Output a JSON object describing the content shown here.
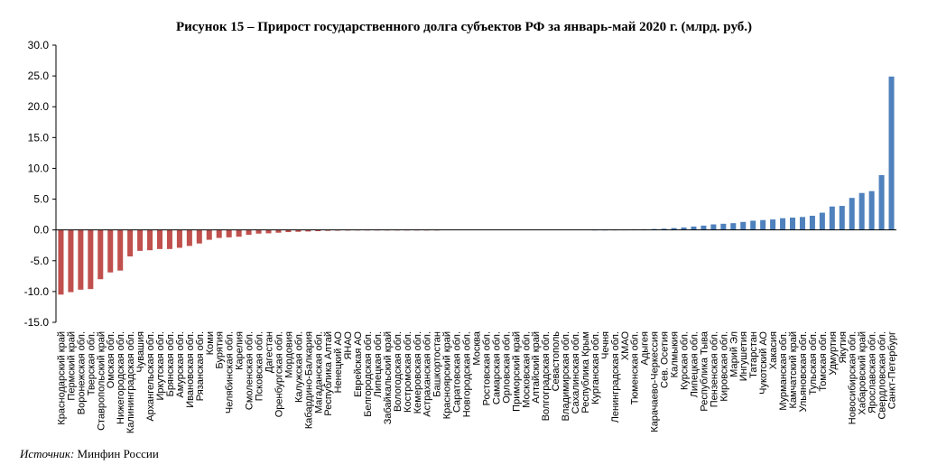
{
  "figure": {
    "title": "Рисунок 15 – Прирост государственного долга субъектов РФ за январь-май 2020 г. (млрд. руб.)",
    "source_label": "Источник:",
    "source_text": "Минфин России"
  },
  "chart_data": {
    "type": "bar",
    "title": "Рисунок 15 – Прирост государственного долга субъектов РФ за январь-май 2020 г. (млрд. руб.)",
    "xlabel": "",
    "ylabel": "",
    "ylim": [
      -15,
      30
    ],
    "yticks": [
      "30.0",
      "25.0",
      "20.0",
      "15.0",
      "10.0",
      "5.0",
      "0.0",
      "-5.0",
      "-10.0",
      "-15.0"
    ],
    "grid": false,
    "colors": {
      "negative": "#c0504d",
      "positive": "#4f81bd"
    },
    "categories": [
      "Краснодарский край",
      "Пермский край",
      "Воронежская обл.",
      "Тверская обл.",
      "Ставропольский край",
      "Омская обл.",
      "Нижегородская обл.",
      "Калининградская обл.",
      "Чувашия",
      "Архангельская обл.",
      "Иркутская обл.",
      "Брянская обл.",
      "Амурская обл.",
      "Ивановская обл.",
      "Рязанская обл.",
      "Коми",
      "Бурятия",
      "Челябинская обл.",
      "Карелия",
      "Смоленская обл.",
      "Псковская обл.",
      "Дагестан",
      "Оренбургская обл.",
      "Мордовия",
      "Калужская обл.",
      "Кабардино-Балкария",
      "Магаданская обл.",
      "Республика Алтай",
      "Ненецкий АО",
      "ЯНАО",
      "Еврейская АО",
      "Белгородская обл.",
      "Липецкая обл.",
      "Забайкальский край",
      "Вологодская обл.",
      "Костромская обл.",
      "Кемеровская обл.",
      "Астраханская обл.",
      "Башкортостан",
      "Красноярский край",
      "Саратовская обл.",
      "Новгородская обл.",
      "Москва",
      "Ростовская обл.",
      "Самарская обл.",
      "Орловская обл.",
      "Приморский край",
      "Московская обл.",
      "Алтайский край",
      "Волгоградская обл.",
      "Севастополь",
      "Владимирская обл.",
      "Сахалинская обл.",
      "Республика Крым",
      "Курганская обл.",
      "Чечня",
      "Ленинградская обл.",
      "ХМАО",
      "Тюменская обл.",
      "Адыгея",
      "Карачаево-Черкессия",
      "Сев. Осетия",
      "Калмыкия",
      "Курская обл.",
      "Липецкая обл.",
      "Республика Тыва",
      "Пензенская обл.",
      "Кировская обл.",
      "Марий Эл",
      "Ингушетия",
      "Татарстан",
      "Чукотский АО",
      "Хакасия",
      "Мурманская обл.",
      "Камчатский край",
      "Ульяновская обл.",
      "Тульская обл.",
      "Томская обл.",
      "Удмуртия",
      "Якутия",
      "Новосибирская обл.",
      "Хабаровский край",
      "Ярославская обл.",
      "Свердловская обл.",
      "Санкт-Петербург"
    ],
    "values": [
      -10.5,
      -10.1,
      -9.7,
      -9.6,
      -8.0,
      -6.9,
      -6.6,
      -4.3,
      -3.4,
      -3.3,
      -3.1,
      -3.1,
      -2.9,
      -2.6,
      -2.2,
      -1.6,
      -1.3,
      -1.2,
      -1.1,
      -0.8,
      -0.6,
      -0.55,
      -0.45,
      -0.35,
      -0.3,
      -0.25,
      -0.2,
      -0.15,
      -0.12,
      -0.1,
      -0.08,
      -0.06,
      -0.05,
      -0.04,
      -0.03,
      -0.02,
      -0.02,
      -0.01,
      -0.01,
      0,
      0,
      0,
      0,
      0,
      0,
      0,
      0,
      0,
      0,
      0,
      0,
      0,
      0,
      0,
      0.01,
      0.01,
      0.02,
      0.03,
      0.05,
      0.08,
      0.15,
      0.2,
      0.3,
      0.4,
      0.55,
      0.7,
      0.9,
      1.0,
      1.1,
      1.3,
      1.5,
      1.6,
      1.7,
      1.9,
      2.0,
      2.1,
      2.3,
      2.8,
      3.8,
      3.9,
      5.2,
      6.0,
      6.3,
      8.9,
      24.9
    ]
  }
}
